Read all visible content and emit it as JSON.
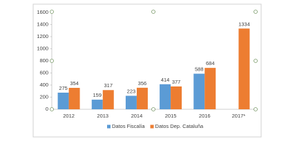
{
  "chart_data": {
    "type": "bar",
    "categories": [
      "2012",
      "2013",
      "2014",
      "2015",
      "2016",
      "2017*"
    ],
    "series": [
      {
        "name": "Datos Fiscalía",
        "color": "#5b9bd5",
        "values": [
          275,
          159,
          223,
          414,
          588,
          null
        ]
      },
      {
        "name": "Datos Dep. Cataluña",
        "color": "#ed7d31",
        "values": [
          354,
          317,
          356,
          377,
          684,
          1334
        ]
      }
    ],
    "ylim": [
      0,
      1600
    ],
    "yticks": [
      0,
      200,
      400,
      600,
      800,
      1000,
      1200,
      1400,
      1600
    ],
    "grid": false,
    "legend": "bottom"
  }
}
